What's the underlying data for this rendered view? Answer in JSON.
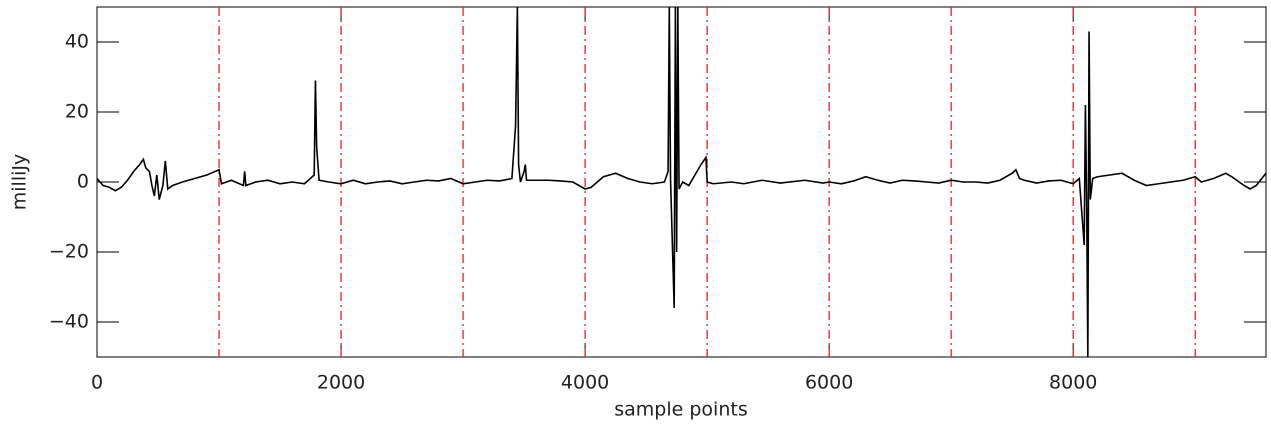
{
  "chart_data": {
    "type": "line",
    "xlabel": "sample points",
    "ylabel": "milliJy",
    "xlim": [
      0,
      9580
    ],
    "ylim": [
      -50,
      50
    ],
    "xticks": [
      0,
      2000,
      4000,
      6000,
      8000
    ],
    "yticks": [
      {
        "value": -40,
        "label": "−40"
      },
      {
        "value": -20,
        "label": "−20"
      },
      0,
      20,
      40
    ],
    "vlines": [
      1000,
      2000,
      3000,
      4000,
      5000,
      6000,
      7000,
      8000,
      9000
    ],
    "vline_color": "#e8202a",
    "x": [
      0,
      50,
      100,
      150,
      200,
      250,
      300,
      350,
      380,
      400,
      430,
      450,
      470,
      490,
      510,
      540,
      560,
      580,
      620,
      700,
      800,
      900,
      1000,
      1020,
      1100,
      1200,
      1210,
      1220,
      1300,
      1400,
      1500,
      1600,
      1700,
      1780,
      1790,
      1800,
      1820,
      1900,
      2000,
      2100,
      2200,
      2300,
      2400,
      2500,
      2600,
      2700,
      2800,
      2900,
      3000,
      3100,
      3200,
      3300,
      3400,
      3430,
      3445,
      3455,
      3470,
      3500,
      3510,
      3520,
      3600,
      3700,
      3800,
      3900,
      4000,
      4050,
      4150,
      4250,
      4350,
      4450,
      4550,
      4650,
      4680,
      4690,
      4700,
      4730,
      4740,
      4750,
      4760,
      4770,
      4800,
      4850,
      4900,
      4950,
      4990,
      5000,
      5050,
      5200,
      5300,
      5450,
      5600,
      5800,
      5950,
      6000,
      6100,
      6200,
      6300,
      6400,
      6500,
      6600,
      6700,
      6800,
      6900,
      7000,
      7100,
      7200,
      7300,
      7400,
      7500,
      7530,
      7560,
      7600,
      7700,
      7800,
      7900,
      7950,
      8000,
      8050,
      8090,
      8100,
      8110,
      8120,
      8130,
      8140,
      8160,
      8200,
      8300,
      8400,
      8500,
      8600,
      8700,
      8800,
      8900,
      9000,
      9050,
      9150,
      9250,
      9300,
      9400,
      9450,
      9500,
      9580
    ],
    "series": [
      {
        "color": "#000000",
        "values": [
          1,
          -1,
          -1.5,
          -2.5,
          -1.5,
          0.5,
          3,
          5,
          6.5,
          4,
          3,
          -1,
          -4,
          2,
          -5,
          -1,
          6,
          -2,
          -1,
          0,
          1,
          2,
          3.5,
          -0.5,
          0.5,
          -1,
          3,
          -1,
          0,
          0.5,
          -0.5,
          0,
          -0.5,
          2,
          29,
          10,
          0.5,
          0,
          -0.5,
          0.5,
          -0.5,
          0,
          0.3,
          -0.5,
          0,
          0.5,
          0.3,
          1,
          -0.5,
          0,
          0.5,
          0.3,
          1,
          16,
          50,
          5,
          0,
          3,
          5,
          0.5,
          0.5,
          0.5,
          0.3,
          0,
          -2,
          -1.5,
          1.5,
          2.5,
          1,
          0,
          -0.5,
          0,
          3,
          50,
          1,
          -36,
          50,
          -20,
          50,
          -2,
          0,
          -1,
          2,
          5,
          7,
          0,
          -0.5,
          0,
          -0.5,
          0.5,
          -0.3,
          0.5,
          -0.3,
          0,
          -0.5,
          0.3,
          1.5,
          0.5,
          -0.3,
          0.5,
          0.3,
          0,
          -0.3,
          0.5,
          0,
          0,
          -0.3,
          0.5,
          2.5,
          3.5,
          1,
          0.5,
          -0.3,
          0.3,
          0.5,
          0,
          -0.5,
          1,
          -18,
          22,
          -5,
          -50,
          43,
          -5,
          1,
          1.5,
          2,
          2.5,
          0.5,
          -1,
          -0.5,
          0,
          0.5,
          1.5,
          0,
          1,
          2.5,
          1.5,
          -1,
          -2,
          -1,
          2.5
        ]
      }
    ]
  }
}
